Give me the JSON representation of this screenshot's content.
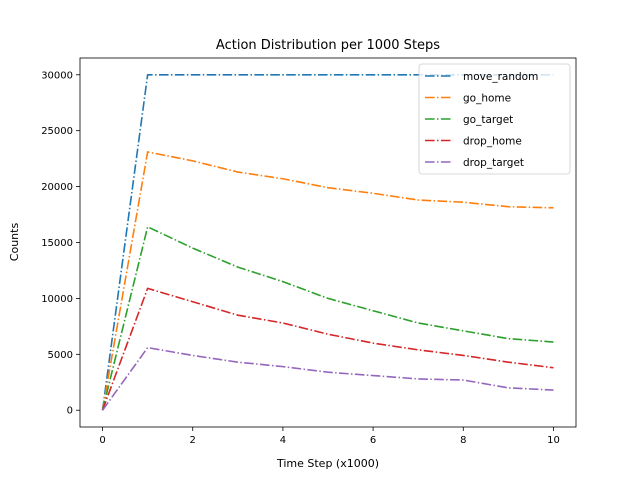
{
  "chart_data": {
    "type": "line",
    "title": "Action Distribution per 1000 Steps",
    "xlabel": "Time Step (x1000)",
    "ylabel": "Counts",
    "xlim": [
      -0.5,
      10.5
    ],
    "ylim": [
      -1500,
      31500
    ],
    "xticks": [
      0,
      2,
      4,
      6,
      8,
      10
    ],
    "yticks": [
      0,
      5000,
      10000,
      15000,
      20000,
      25000,
      30000
    ],
    "grid": false,
    "legend_position": "top-right",
    "line_style": "dash-dot",
    "x": [
      0,
      1,
      2,
      3,
      4,
      5,
      6,
      7,
      8,
      9,
      10
    ],
    "series": [
      {
        "name": "move_random",
        "color": "#1f77b4",
        "values": [
          0,
          30000,
          30000,
          30000,
          30000,
          30000,
          30000,
          30000,
          30000,
          30000,
          30000
        ]
      },
      {
        "name": "go_home",
        "color": "#ff7f0e",
        "values": [
          0,
          23100,
          22300,
          21300,
          20700,
          19900,
          19400,
          18800,
          18600,
          18200,
          18100
        ]
      },
      {
        "name": "go_target",
        "color": "#2ca02c",
        "values": [
          0,
          16400,
          14500,
          12800,
          11500,
          10000,
          8900,
          7800,
          7100,
          6400,
          6100
        ]
      },
      {
        "name": "drop_home",
        "color": "#d62728",
        "values": [
          0,
          10900,
          9700,
          8500,
          7800,
          6800,
          6000,
          5400,
          4900,
          4300,
          3800
        ]
      },
      {
        "name": "drop_target",
        "color": "#9467bd",
        "values": [
          0,
          5600,
          4900,
          4300,
          3900,
          3400,
          3100,
          2800,
          2700,
          2000,
          1800
        ]
      }
    ]
  }
}
